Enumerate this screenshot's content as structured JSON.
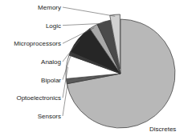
{
  "chart_data": {
    "type": "pie",
    "categories": [
      "Discretes",
      "Sensors",
      "Optoelectronics",
      "Bipolar",
      "Analog",
      "Microprocessors",
      "Logic",
      "Memory"
    ],
    "values": [
      72,
      1.5,
      7,
      1,
      9,
      2.5,
      4,
      3
    ],
    "colors": [
      "#b8b8b8",
      "#5a5a5a",
      "#ffffff",
      "#3a3a3a",
      "#262626",
      "#a8a8a8",
      "#4a4a4a",
      "#d0d0d0"
    ]
  }
}
